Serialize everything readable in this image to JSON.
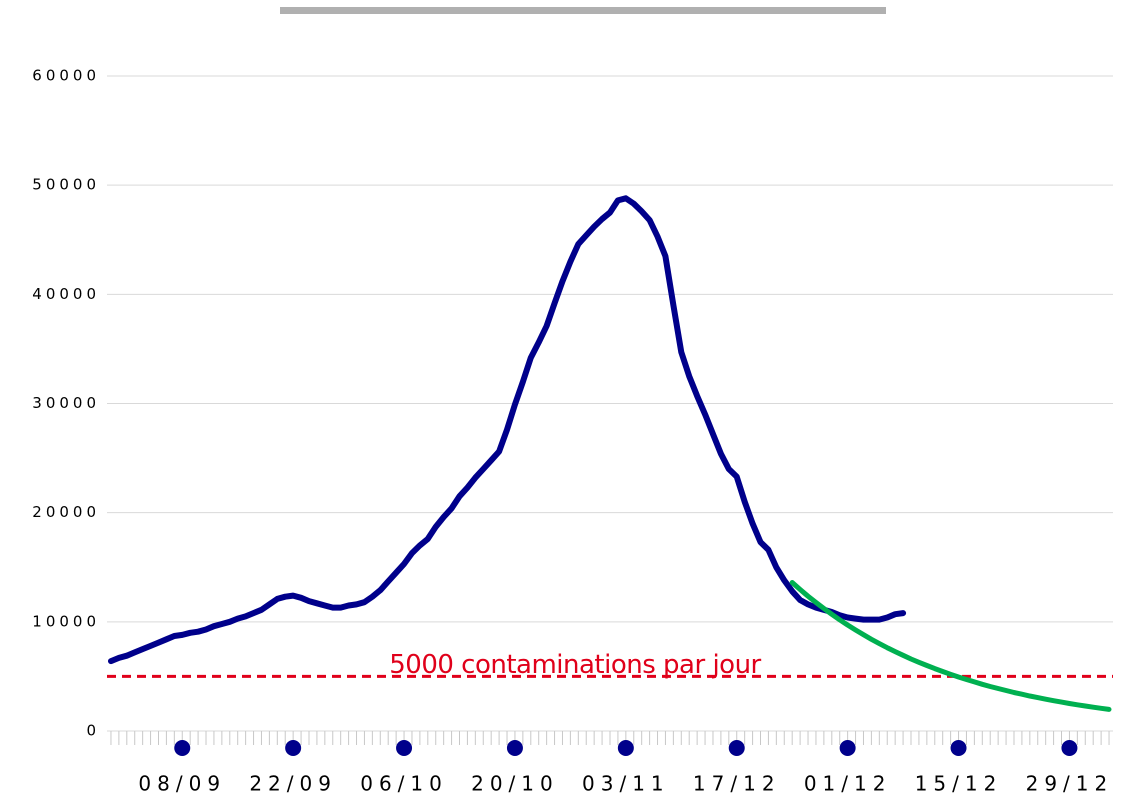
{
  "chart_data": {
    "type": "line",
    "categories": [
      null,
      null,
      null,
      null,
      null,
      null,
      null,
      null,
      null,
      "08/09",
      null,
      null,
      null,
      null,
      null,
      null,
      null,
      null,
      null,
      null,
      null,
      null,
      null,
      "22/09",
      null,
      null,
      null,
      null,
      null,
      null,
      null,
      null,
      null,
      null,
      null,
      null,
      null,
      "06/10",
      null,
      null,
      null,
      null,
      null,
      null,
      null,
      null,
      null,
      null,
      null,
      null,
      null,
      "20/10",
      null,
      null,
      null,
      null,
      null,
      null,
      null,
      null,
      null,
      null,
      null,
      null,
      null,
      "03/11",
      null,
      null,
      null,
      null,
      null,
      null,
      null,
      null,
      null,
      null,
      null,
      null,
      null,
      "17/12",
      null,
      null,
      null,
      null,
      null,
      null,
      null,
      null,
      null,
      null,
      null,
      null,
      null,
      "01/12",
      null,
      null,
      null,
      null,
      null,
      null,
      null,
      null,
      null,
      null,
      null,
      null,
      null,
      "15/12",
      null,
      null,
      null,
      null,
      null,
      null,
      null,
      null,
      null,
      null,
      null,
      null,
      null,
      "29/12",
      null,
      null,
      null,
      null,
      null
    ],
    "series": [
      {
        "color": "#00008b",
        "values": [
          6400,
          6700,
          6900,
          7200,
          7500,
          7800,
          8100,
          8400,
          8700,
          8800,
          9000,
          9100,
          9300,
          9600,
          9800,
          10000,
          10300,
          10500,
          10800,
          11100,
          11600,
          12100,
          12300,
          12400,
          12200,
          11900,
          11700,
          11500,
          11300,
          11300,
          11500,
          11600,
          11800,
          12300,
          12900,
          13700,
          14500,
          15300,
          16300,
          17000,
          17600,
          18700,
          19600,
          20400,
          21500,
          22300,
          23200,
          24000,
          24800,
          25600,
          27600,
          29900,
          32000,
          34200,
          35600,
          37100,
          39200,
          41200,
          43000,
          44600,
          45400,
          46200,
          46900,
          47500,
          48600,
          48800,
          48300,
          47600,
          46800,
          45300,
          43500,
          39000,
          34700,
          32500,
          30700,
          29000,
          27200,
          25400,
          24000,
          23300,
          21000,
          19000,
          17300,
          16600,
          15000,
          13800,
          12800,
          12000,
          11600,
          11300,
          11100,
          10900,
          10600,
          10400,
          10300,
          10200,
          10200,
          10200,
          10400,
          10700,
          10800,
          null,
          null,
          null,
          null,
          null,
          null,
          null,
          null,
          null,
          null,
          null,
          null,
          null,
          null,
          null,
          null,
          null,
          null,
          null,
          null,
          null,
          null,
          null,
          null,
          null,
          null
        ]
      },
      {
        "color": "#00b050",
        "values": [
          null,
          null,
          null,
          null,
          null,
          null,
          null,
          null,
          null,
          null,
          null,
          null,
          null,
          null,
          null,
          null,
          null,
          null,
          null,
          null,
          null,
          null,
          null,
          null,
          null,
          null,
          null,
          null,
          null,
          null,
          null,
          null,
          null,
          null,
          null,
          null,
          null,
          null,
          null,
          null,
          null,
          null,
          null,
          null,
          null,
          null,
          null,
          null,
          null,
          null,
          null,
          null,
          null,
          null,
          null,
          null,
          null,
          null,
          null,
          null,
          null,
          null,
          null,
          null,
          null,
          null,
          null,
          null,
          null,
          null,
          null,
          null,
          null,
          null,
          null,
          null,
          null,
          null,
          null,
          null,
          null,
          null,
          null,
          null,
          null,
          null,
          13600,
          12960,
          12350,
          11770,
          11220,
          10690,
          10190,
          9710,
          9250,
          8820,
          8400,
          8010,
          7630,
          7270,
          6930,
          6600,
          6290,
          6000,
          5720,
          5450,
          5190,
          4950,
          4720,
          4500,
          4280,
          4080,
          3890,
          3710,
          3530,
          3370,
          3210,
          3060,
          2910,
          2780,
          2650,
          2520,
          2400,
          2290,
          2180,
          2080,
          1980
        ]
      }
    ],
    "reference_line": {
      "value": 5000,
      "label": "5000 contaminations par jour",
      "color": "#e0001a"
    },
    "ylim": [
      0,
      60000
    ],
    "yticks": [
      0,
      10000,
      20000,
      30000,
      40000,
      50000,
      60000
    ],
    "grid": true
  }
}
